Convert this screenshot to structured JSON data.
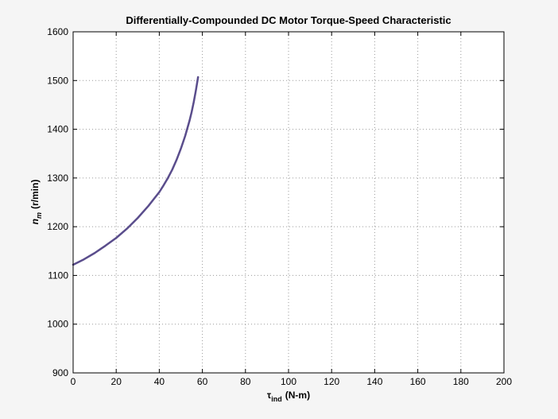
{
  "chart_data": {
    "type": "line",
    "title": "Differentially-Compounded DC Motor Torque-Speed Characteristic",
    "xlabel": {
      "symbol": "τ",
      "subscript": "ind",
      "unit": "(N-m)"
    },
    "ylabel": {
      "symbol": "n",
      "subscript": "m",
      "unit": "(r/min)"
    },
    "xlim": [
      0,
      200
    ],
    "ylim": [
      900,
      1600
    ],
    "xticks": [
      0,
      20,
      40,
      60,
      80,
      100,
      120,
      140,
      160,
      180,
      200
    ],
    "yticks": [
      900,
      1000,
      1100,
      1200,
      1300,
      1400,
      1500,
      1600
    ],
    "grid": true,
    "legend": "none",
    "series": [
      {
        "color": "#5a4d8c",
        "x": [
          0,
          5,
          10,
          15,
          20,
          25,
          30,
          35,
          40,
          42,
          44,
          46,
          48,
          50,
          52,
          54,
          55,
          56,
          57,
          58
        ],
        "y": [
          1122,
          1133,
          1146,
          1161,
          1177,
          1196,
          1218,
          1243,
          1271,
          1285,
          1300,
          1317,
          1337,
          1360,
          1386,
          1417,
          1435,
          1456,
          1480,
          1507
        ]
      }
    ]
  }
}
